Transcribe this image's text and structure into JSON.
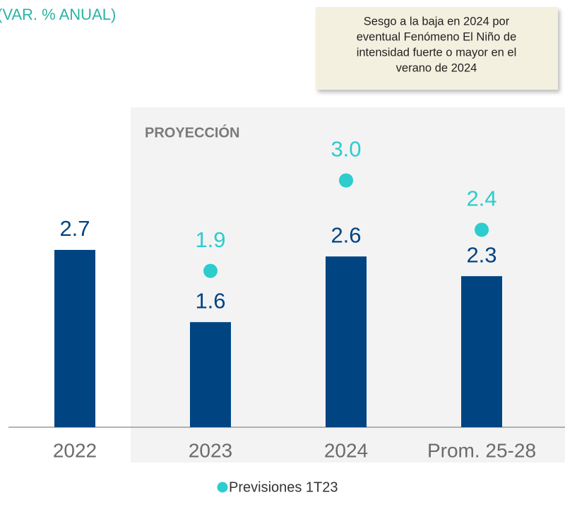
{
  "chart_data": {
    "type": "bar",
    "title": "(VAR. % ANUAL)",
    "section_label": "PROYECCIÓN",
    "annotation": [
      "Sesgo a la baja en 2024 por",
      "eventual Fenómeno El Niño de",
      "intensidad fuerte o mayor en el",
      "verano de 2024"
    ],
    "categories": [
      "2022",
      "2023",
      "2024",
      "Prom. 25-28"
    ],
    "series": [
      {
        "color": "#004481",
        "values": [
          2.7,
          1.6,
          2.6,
          2.3
        ]
      },
      {
        "name": "Previsiones 1T23",
        "type": "scatter",
        "color": "#2dcccd",
        "values": [
          null,
          1.9,
          3.0,
          2.4
        ],
        "value_labels": [
          null,
          "1.9",
          "3.0",
          "2.4"
        ]
      }
    ]
  }
}
